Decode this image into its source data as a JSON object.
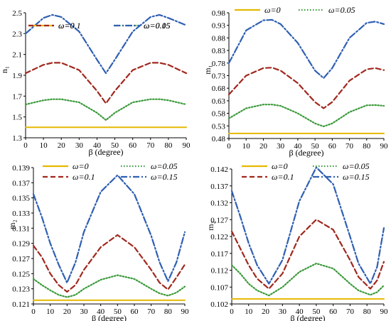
{
  "chart_data": [
    {
      "type": "line",
      "ylabel": "n₁",
      "xlabel": "β (degree)",
      "x": [
        0,
        10,
        15,
        20,
        30,
        40,
        45,
        50,
        60,
        70,
        75,
        80,
        90
      ],
      "xticks": [
        "0",
        "10",
        "20",
        "30",
        "40",
        "50",
        "60",
        "70",
        "80",
        "90"
      ],
      "xlim": [
        0,
        90
      ],
      "yticks": [
        "1.3",
        "1.5",
        "1.7",
        "1.9",
        "2.1",
        "2.3",
        "2.5"
      ],
      "ylim": [
        1.3,
        2.5
      ],
      "series": [
        {
          "name": "ω=0",
          "color": "#e6b800",
          "dash": "solid",
          "values": [
            1.4,
            1.4,
            1.4,
            1.4,
            1.4,
            1.4,
            1.4,
            1.4,
            1.4,
            1.4,
            1.4,
            1.4,
            1.4
          ]
        },
        {
          "name": "ω=0.05",
          "color": "#3a9a3a",
          "dash": "dotted",
          "values": [
            1.62,
            1.66,
            1.67,
            1.67,
            1.64,
            1.54,
            1.47,
            1.54,
            1.64,
            1.67,
            1.67,
            1.66,
            1.62
          ]
        },
        {
          "name": "ω=0.1",
          "color": "#a0281e",
          "dash": "dashed",
          "values": [
            1.92,
            2.0,
            2.02,
            2.02,
            1.95,
            1.75,
            1.63,
            1.75,
            1.95,
            2.02,
            2.02,
            2.0,
            1.92
          ]
        },
        {
          "name": "ω=0.15",
          "color": "#2f5fb3",
          "dash": "dashdot",
          "values": [
            2.3,
            2.45,
            2.48,
            2.46,
            2.32,
            2.05,
            1.92,
            2.05,
            2.32,
            2.46,
            2.48,
            2.45,
            2.38
          ]
        }
      ],
      "legend": "top"
    },
    {
      "type": "line",
      "ylabel": "m₁",
      "xlabel": "β (degree)",
      "x": [
        0,
        10,
        20,
        25,
        30,
        40,
        50,
        55,
        60,
        70,
        80,
        85,
        90
      ],
      "xticks": [
        "0",
        "10",
        "20",
        "30",
        "40",
        "50",
        "60",
        "70",
        "80",
        "90"
      ],
      "xlim": [
        0,
        90
      ],
      "yticks": [
        "0.48",
        "0.53",
        "0.58",
        "0.63",
        "0.68",
        "0.73",
        "0.78",
        "0.83",
        "0.88",
        "0.93",
        "0.98"
      ],
      "ylim": [
        0.48,
        0.98
      ],
      "series": [
        {
          "name": "ω=0",
          "color": "#e6b800",
          "dash": "solid",
          "values": [
            0.5,
            0.5,
            0.5,
            0.5,
            0.5,
            0.5,
            0.5,
            0.5,
            0.5,
            0.5,
            0.5,
            0.5,
            0.5
          ]
        },
        {
          "name": "ω=0.05",
          "color": "#3a9a3a",
          "dash": "dotted",
          "values": [
            0.56,
            0.6,
            0.615,
            0.615,
            0.61,
            0.58,
            0.54,
            0.528,
            0.54,
            0.585,
            0.612,
            0.613,
            0.61
          ]
        },
        {
          "name": "ω=0.1",
          "color": "#a0281e",
          "dash": "dashed",
          "values": [
            0.655,
            0.73,
            0.76,
            0.762,
            0.75,
            0.7,
            0.625,
            0.6,
            0.625,
            0.71,
            0.755,
            0.76,
            0.752
          ]
        },
        {
          "name": "ω=0.15",
          "color": "#2f5fb3",
          "dash": "dashdot",
          "values": [
            0.78,
            0.91,
            0.95,
            0.952,
            0.935,
            0.86,
            0.75,
            0.72,
            0.76,
            0.88,
            0.94,
            0.945,
            0.935
          ]
        }
      ],
      "legend": "top"
    },
    {
      "type": "line",
      "ylabel": "m₂",
      "xlabel": "β (degree)",
      "x": [
        0,
        5,
        10,
        15,
        20,
        25,
        30,
        40,
        50,
        60,
        70,
        75,
        80,
        85,
        90
      ],
      "xticks": [
        "0",
        "10",
        "20",
        "30",
        "40",
        "50",
        "60",
        "70",
        "80",
        "90"
      ],
      "xlim": [
        0,
        90
      ],
      "yticks": [
        "0.121",
        "0.123",
        "0.125",
        "0.127",
        "0.129",
        "0.131",
        "0.133",
        "0.135",
        "0.137",
        "0.139"
      ],
      "ylim": [
        0.121,
        0.139
      ],
      "series": [
        {
          "name": "ω=0",
          "color": "#e6b800",
          "dash": "solid",
          "values": [
            0.1215,
            0.1215,
            0.1215,
            0.1215,
            0.1215,
            0.1215,
            0.1215,
            0.1215,
            0.1215,
            0.1215,
            0.1215,
            0.1215,
            0.1215,
            0.1215,
            0.1215
          ]
        },
        {
          "name": "ω=0.05",
          "color": "#3a9a3a",
          "dash": "dotted",
          "values": [
            0.1243,
            0.1235,
            0.1228,
            0.1222,
            0.1219,
            0.1222,
            0.123,
            0.1242,
            0.1248,
            0.1243,
            0.123,
            0.1224,
            0.1221,
            0.1225,
            0.1233
          ]
        },
        {
          "name": "ω=0.1",
          "color": "#a0281e",
          "dash": "dashed",
          "values": [
            0.1287,
            0.1272,
            0.125,
            0.1235,
            0.1226,
            0.1235,
            0.1255,
            0.1285,
            0.1301,
            0.1285,
            0.1255,
            0.1238,
            0.1229,
            0.1245,
            0.1262
          ]
        },
        {
          "name": "ω=0.15",
          "color": "#2f5fb3",
          "dash": "dashdot",
          "values": [
            0.1355,
            0.1325,
            0.129,
            0.1262,
            0.1238,
            0.1265,
            0.1305,
            0.1358,
            0.138,
            0.1355,
            0.13,
            0.1265,
            0.124,
            0.1265,
            0.1305
          ]
        }
      ],
      "legend": "top"
    },
    {
      "type": "line",
      "ylabel": "m₂",
      "xlabel": "β (degree)",
      "x": [
        0,
        5,
        10,
        15,
        22,
        30,
        40,
        50,
        60,
        70,
        75,
        82,
        86,
        90
      ],
      "xticks": [
        "0",
        "10",
        "20",
        "30",
        "40",
        "50",
        "60",
        "70",
        "80",
        "90"
      ],
      "xlim": [
        0,
        90
      ],
      "yticks": [
        "0.102",
        "0.107",
        "0.112",
        "0.117",
        "0.122",
        "0.127",
        "0.132",
        "0.137",
        "0.142"
      ],
      "ylim": [
        0.102,
        0.142
      ],
      "series": [
        {
          "name": "ω=0",
          "color": "#e6b800",
          "dash": "solid",
          "values": [
            0.1035,
            0.1035,
            0.1035,
            0.1035,
            0.1035,
            0.1035,
            0.1035,
            0.1035,
            0.1035,
            0.1035,
            0.1035,
            0.1035,
            0.1035,
            0.1035
          ]
        },
        {
          "name": "ω=0.05",
          "color": "#3a9a3a",
          "dash": "dotted",
          "values": [
            0.1135,
            0.111,
            0.108,
            0.106,
            0.1045,
            0.107,
            0.1115,
            0.114,
            0.1125,
            0.108,
            0.106,
            0.1047,
            0.1055,
            0.1075
          ]
        },
        {
          "name": "ω=0.1",
          "color": "#a0281e",
          "dash": "dashed",
          "values": [
            0.1235,
            0.1185,
            0.1135,
            0.1095,
            0.1065,
            0.111,
            0.122,
            0.127,
            0.124,
            0.115,
            0.11,
            0.1065,
            0.109,
            0.1145
          ]
        },
        {
          "name": "ω=0.15",
          "color": "#2f5fb3",
          "dash": "dashdot",
          "values": [
            0.1355,
            0.128,
            0.12,
            0.1135,
            0.108,
            0.115,
            0.1325,
            0.1425,
            0.1375,
            0.122,
            0.114,
            0.108,
            0.113,
            0.1245
          ]
        }
      ],
      "legend": "top"
    }
  ]
}
